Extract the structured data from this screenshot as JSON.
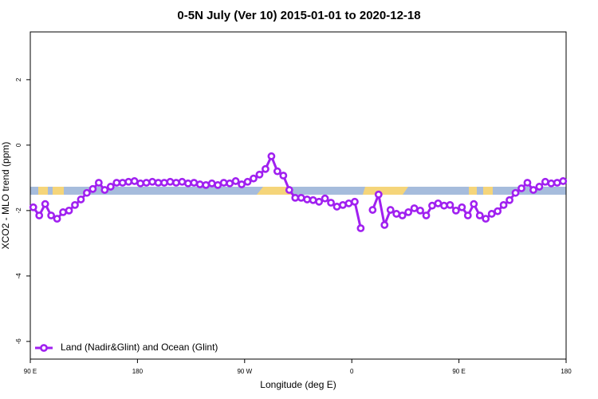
{
  "chart_data": {
    "type": "line",
    "title": "0-5N July (Ver 10)   2015-01-01 to 2020-12-18",
    "xlabel": "Longitude (deg E)",
    "ylabel": "XCO2 - MLO trend (ppm)",
    "xlim": [
      90,
      540
    ],
    "ylim": [
      -6.54,
      3.46
    ],
    "xticks": [
      {
        "value": 90,
        "label": "90 E"
      },
      {
        "value": 180,
        "label": "180"
      },
      {
        "value": 270,
        "label": "90 W"
      },
      {
        "value": 360,
        "label": "0"
      },
      {
        "value": 450,
        "label": "90 E"
      },
      {
        "value": 540,
        "label": "180"
      }
    ],
    "yticks": [
      -6,
      -4,
      -2,
      0,
      2
    ],
    "legend": "bottom-left",
    "x": [
      92.5,
      97.5,
      102.5,
      107.5,
      112.5,
      117.5,
      122.5,
      127.5,
      132.5,
      137.5,
      142.5,
      147.5,
      152.5,
      157.5,
      162.5,
      167.5,
      172.5,
      177.5,
      182.5,
      187.5,
      192.5,
      197.5,
      202.5,
      207.5,
      212.5,
      217.5,
      222.5,
      227.5,
      232.5,
      237.5,
      242.5,
      247.5,
      252.5,
      257.5,
      262.5,
      267.5,
      272.5,
      277.5,
      282.5,
      287.5,
      292.5,
      297.5,
      302.5,
      307.5,
      312.5,
      317.5,
      322.5,
      327.5,
      332.5,
      337.5,
      342.5,
      347.5,
      352.5,
      357.5,
      362.5,
      367.5,
      372.5,
      377.5,
      382.5,
      387.5,
      392.5,
      397.5,
      402.5,
      407.5,
      412.5,
      417.5,
      422.5,
      427.5,
      432.5,
      437.5,
      442.5,
      447.5,
      452.5,
      457.5,
      462.5,
      467.5,
      472.5,
      477.5,
      482.5,
      487.5,
      492.5,
      497.5,
      502.5,
      507.5,
      512.5,
      517.5,
      522.5,
      527.5,
      532.5,
      537.5
    ],
    "series": [
      {
        "name": "Land (Nadir&Glint) and Ocean (Glint)",
        "color": "#a020f0",
        "values": [
          -1.9,
          -2.15,
          -1.8,
          -2.15,
          -2.25,
          -2.05,
          -2.0,
          -1.83,
          -1.66,
          -1.46,
          -1.34,
          -1.15,
          -1.37,
          -1.27,
          -1.15,
          -1.15,
          -1.12,
          -1.1,
          -1.17,
          -1.15,
          -1.12,
          -1.15,
          -1.15,
          -1.12,
          -1.15,
          -1.12,
          -1.17,
          -1.15,
          -1.2,
          -1.22,
          -1.17,
          -1.22,
          -1.15,
          -1.17,
          -1.1,
          -1.2,
          -1.12,
          -1.02,
          -0.9,
          -0.73,
          -0.34,
          -0.8,
          -0.93,
          -1.37,
          -1.61,
          -1.61,
          -1.66,
          -1.68,
          -1.73,
          -1.63,
          -1.76,
          -1.88,
          -1.83,
          -1.78,
          -1.73,
          -2.54,
          null,
          -1.98,
          -1.51,
          -2.44,
          -1.98,
          -2.1,
          -2.15,
          -2.05,
          -1.93,
          -2.0,
          -2.15,
          -1.85,
          -1.78,
          -1.85,
          -1.83,
          -2.0,
          -1.9,
          -2.15,
          -1.8,
          -2.15,
          -2.25,
          -2.1,
          -2.02,
          -1.83,
          -1.68,
          -1.46,
          -1.32,
          -1.15,
          -1.37,
          -1.27,
          -1.12,
          -1.17,
          -1.15,
          -1.1
        ]
      }
    ]
  }
}
